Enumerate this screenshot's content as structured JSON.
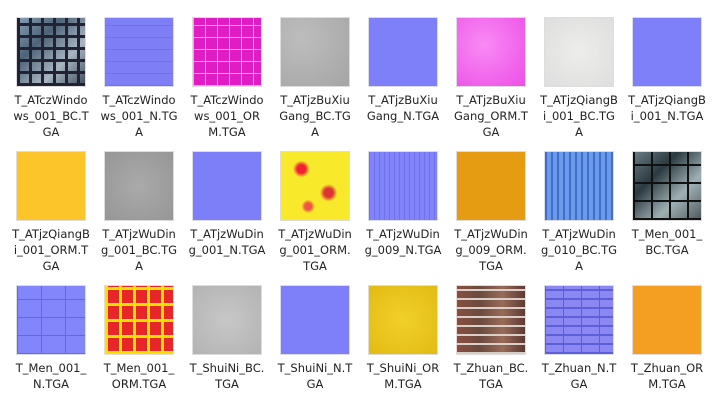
{
  "items": [
    {
      "name": "T_ATczWindows_001_BC.TGA"
    },
    {
      "name": "T_ATczWindows_001_N.TGA"
    },
    {
      "name": "T_ATczWindows_001_ORM.TGA"
    },
    {
      "name": "T_ATjzBuXiuGang_BC.TGA"
    },
    {
      "name": "T_ATjzBuXiuGang_N.TGA"
    },
    {
      "name": "T_ATjzBuXiuGang_ORM.TGA"
    },
    {
      "name": "T_ATjzQiangBi_001_BC.TGA"
    },
    {
      "name": "T_ATjzQiangBi_001_N.TGA"
    },
    {
      "name": "T_ATjzQiangBi_001_ORM.TGA"
    },
    {
      "name": "T_ATjzWuDing_001_BC.TGA"
    },
    {
      "name": "T_ATjzWuDing_001_N.TGA"
    },
    {
      "name": "T_ATjzWuDing_001_ORM.TGA"
    },
    {
      "name": "T_ATjzWuDing_009_N.TGA"
    },
    {
      "name": "T_ATjzWuDing_009_ORM.TGA"
    },
    {
      "name": "T_ATjzWuDing_010_BC.TGA"
    },
    {
      "name": "T_Men_001_BC.TGA"
    },
    {
      "name": "T_Men_001_N.TGA"
    },
    {
      "name": "T_Men_001_ORM.TGA"
    },
    {
      "name": "T_ShuiNi_BC.TGA"
    },
    {
      "name": "T_ShuiNi_N.TGA"
    },
    {
      "name": "T_ShuiNi_ORM.TGA"
    },
    {
      "name": "T_Zhuan_BC.TGA"
    },
    {
      "name": "T_Zhuan_N.TGA"
    },
    {
      "name": "T_Zhuan_ORM.TGA"
    }
  ]
}
